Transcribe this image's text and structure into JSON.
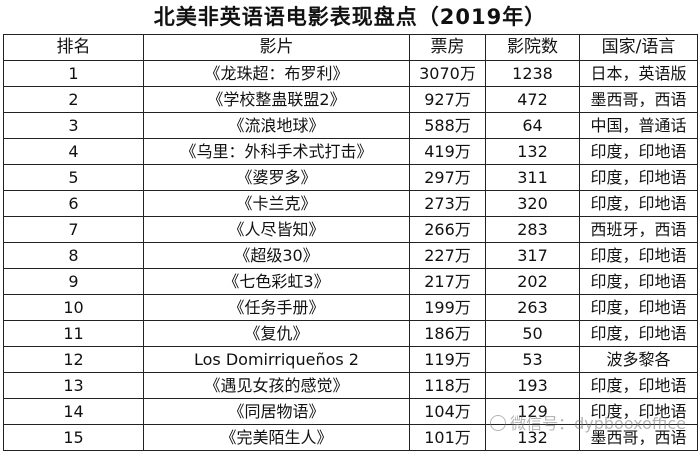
{
  "title": "北美非英语语电影表现盘点（2019年）",
  "columns": [
    "排名",
    "影片",
    "票房",
    "影院数",
    "国家/语言"
  ],
  "rows": [
    {
      "rank": "1",
      "film": "《龙珠超：布罗利》",
      "box_office": "3070万",
      "theaters": "1238",
      "country_language": "日本，英语版"
    },
    {
      "rank": "2",
      "film": "《学校整蛊联盟2》",
      "box_office": "927万",
      "theaters": "472",
      "country_language": "墨西哥，西语"
    },
    {
      "rank": "3",
      "film": "《流浪地球》",
      "box_office": "588万",
      "theaters": "64",
      "country_language": "中国，普通话"
    },
    {
      "rank": "4",
      "film": "《乌里：外科手术式打击》",
      "box_office": "419万",
      "theaters": "132",
      "country_language": "印度，印地语"
    },
    {
      "rank": "5",
      "film": "《婆罗多》",
      "box_office": "297万",
      "theaters": "311",
      "country_language": "印度，印地语"
    },
    {
      "rank": "6",
      "film": "《卡兰克》",
      "box_office": "273万",
      "theaters": "320",
      "country_language": "印度，印地语"
    },
    {
      "rank": "7",
      "film": "《人尽皆知》",
      "box_office": "266万",
      "theaters": "283",
      "country_language": "西班牙，西语"
    },
    {
      "rank": "8",
      "film": "《超级30》",
      "box_office": "227万",
      "theaters": "317",
      "country_language": "印度，印地语"
    },
    {
      "rank": "9",
      "film": "《七色彩虹3》",
      "box_office": "217万",
      "theaters": "202",
      "country_language": "印度，印地语"
    },
    {
      "rank": "10",
      "film": "《任务手册》",
      "box_office": "199万",
      "theaters": "263",
      "country_language": "印度，印地语"
    },
    {
      "rank": "11",
      "film": "《复仇》",
      "box_office": "186万",
      "theaters": "50",
      "country_language": "印度，印地语"
    },
    {
      "rank": "12",
      "film": "Los Domirriqueños 2",
      "box_office": "119万",
      "theaters": "53",
      "country_language": "波多黎各"
    },
    {
      "rank": "13",
      "film": "《遇见女孩的感觉》",
      "box_office": "118万",
      "theaters": "193",
      "country_language": "印度，印地语"
    },
    {
      "rank": "14",
      "film": "《同居物语》",
      "box_office": "104万",
      "theaters": "129",
      "country_language": "印度，印地语"
    },
    {
      "rank": "15",
      "film": "《完美陌生人》",
      "box_office": "101万",
      "theaters": "132",
      "country_language": "墨西哥，西语"
    }
  ],
  "watermark": {
    "text": "微信号：dypbooxoffice",
    "icon": "wechat-icon"
  }
}
